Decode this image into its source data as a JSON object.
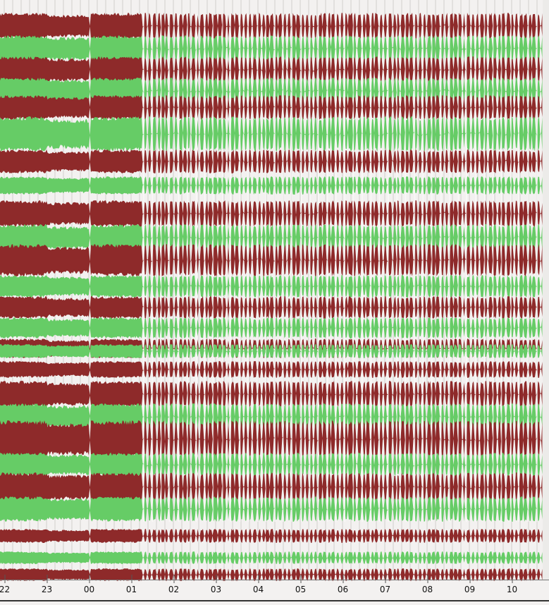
{
  "colors": {
    "red_trace": "#8e2a2a",
    "green_trace": "#66cc66",
    "background": "#f3f1f0",
    "gap": "#ffffff",
    "gridline": "#b9b7b4"
  },
  "time_axis": {
    "labels": [
      "22",
      "23",
      "00",
      "01",
      "02",
      "03",
      "04",
      "05",
      "06",
      "07",
      "08",
      "09",
      "10"
    ]
  },
  "traces": [
    {
      "color": "red"
    },
    {
      "color": "green"
    },
    {
      "color": "red"
    },
    {
      "color": "green"
    },
    {
      "color": "red"
    },
    {
      "color": "green"
    },
    {
      "color": "red"
    },
    {
      "color": "green"
    },
    {
      "color": "red"
    },
    {
      "color": "green"
    },
    {
      "color": "red"
    },
    {
      "color": "green"
    },
    {
      "color": "red"
    },
    {
      "color": "green"
    },
    {
      "color": "red"
    },
    {
      "color": "green"
    },
    {
      "color": "red"
    },
    {
      "color": "red"
    },
    {
      "color": "green"
    },
    {
      "color": "red"
    },
    {
      "color": "green"
    },
    {
      "color": "red"
    },
    {
      "color": "green"
    },
    {
      "color": "red"
    },
    {
      "color": "green"
    },
    {
      "color": "red"
    }
  ]
}
